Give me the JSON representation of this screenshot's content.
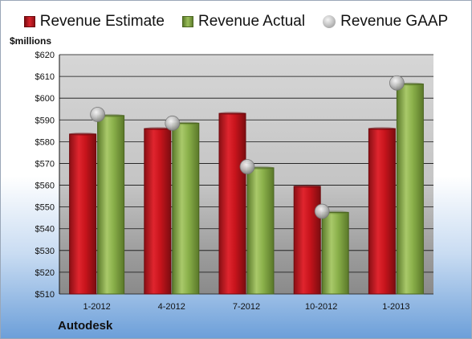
{
  "colors": {
    "estimate": "#c8141c",
    "actual": "#8ab04a",
    "gaap": "#b8b8b8",
    "plot_background": "#c8c8c8"
  },
  "legend": {
    "estimate_label": "Revenue Estimate",
    "actual_label": "Revenue Actual",
    "gaap_label": "Revenue GAAP"
  },
  "footer": {
    "company": "Autodesk"
  },
  "chart_data": {
    "type": "bar",
    "ylabel": "$millions",
    "xlabel": "",
    "title": "",
    "categories": [
      "1-2012",
      "4-2012",
      "7-2012",
      "10-2012",
      "1-2013"
    ],
    "series": [
      {
        "name": "Revenue Estimate",
        "type": "bar",
        "values": [
          583.5,
          586,
          593,
          559.5,
          586
        ]
      },
      {
        "name": "Revenue Actual",
        "type": "bar",
        "values": [
          592,
          588.5,
          568,
          547.5,
          606.5
        ]
      },
      {
        "name": "Revenue GAAP",
        "type": "scatter",
        "values": [
          592.5,
          588.5,
          568.5,
          548,
          607
        ]
      }
    ],
    "ylim": [
      510,
      620
    ],
    "yticks": [
      510,
      520,
      530,
      540,
      550,
      560,
      570,
      580,
      590,
      600,
      610,
      620
    ],
    "ytick_labels": [
      "$510",
      "$520",
      "$530",
      "$540",
      "$550",
      "$560",
      "$570",
      "$580",
      "$590",
      "$600",
      "$610",
      "$620"
    ],
    "grid": true,
    "legend_position": "top"
  }
}
